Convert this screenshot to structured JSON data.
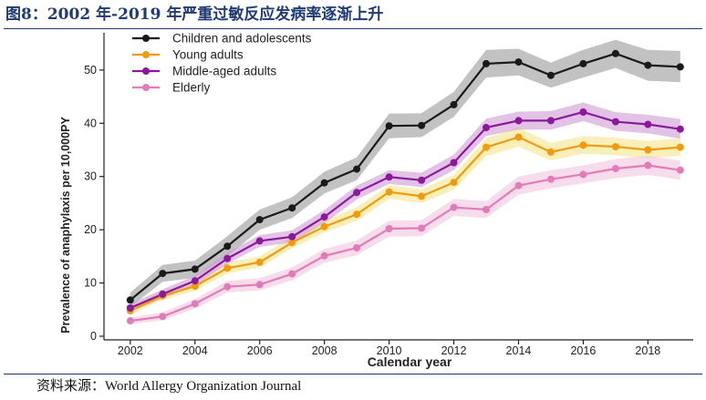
{
  "figure_title": "图8：2002 年-2019 年严重过敏反应发病率逐渐上升",
  "source_text": "资料来源：World Allergy Organization Journal",
  "chart_data": {
    "type": "line",
    "xlabel": "Calendar year",
    "ylabel": "Prevalence of anaphylaxis per 10,000PY",
    "x": [
      2002,
      2003,
      2004,
      2005,
      2006,
      2007,
      2008,
      2009,
      2010,
      2011,
      2012,
      2013,
      2014,
      2015,
      2016,
      2017,
      2018,
      2019
    ],
    "xlim": [
      2001.3,
      2019.4
    ],
    "ylim": [
      0,
      57
    ],
    "x_ticks": [
      "2002",
      "2004",
      "2006",
      "2008",
      "2010",
      "2012",
      "2014",
      "2016",
      "2018"
    ],
    "y_ticks": [
      "0",
      "10",
      "20",
      "30",
      "40",
      "50"
    ],
    "legend_position": "top-left",
    "grid": false,
    "series": [
      {
        "name": "Children and adolescents",
        "color": "#1a1a1a",
        "band_color": "#9a9a9a",
        "values": [
          6.8,
          11.8,
          12.6,
          16.9,
          21.9,
          24.1,
          28.8,
          31.4,
          39.5,
          39.6,
          43.5,
          51.2,
          51.5,
          49.0,
          51.2,
          53.1,
          50.9,
          50.6
        ],
        "ci_lower": [
          5.5,
          10.2,
          11.0,
          15.0,
          20.0,
          22.2,
          26.8,
          29.3,
          37.2,
          37.4,
          41.2,
          48.6,
          49.0,
          46.7,
          48.6,
          50.4,
          48.0,
          47.7
        ],
        "ci_upper": [
          8.2,
          13.4,
          14.2,
          18.8,
          23.8,
          26.1,
          30.9,
          33.6,
          41.8,
          41.9,
          45.9,
          53.8,
          54.0,
          51.4,
          53.8,
          55.7,
          53.8,
          53.6
        ]
      },
      {
        "name": "Young adults",
        "color": "#f29a0e",
        "band_color": "#f5e58a",
        "values": [
          4.8,
          7.6,
          9.4,
          12.8,
          13.9,
          17.6,
          20.6,
          22.9,
          27.1,
          26.3,
          28.9,
          35.5,
          37.4,
          34.6,
          35.9,
          35.6,
          35.0,
          35.5
        ],
        "ci_lower": [
          4.1,
          6.8,
          8.5,
          11.8,
          12.9,
          16.5,
          19.5,
          21.7,
          25.8,
          25.0,
          27.5,
          33.8,
          35.6,
          33.0,
          34.3,
          34.0,
          33.4,
          33.9
        ],
        "ci_upper": [
          5.6,
          8.5,
          10.4,
          13.9,
          15.0,
          18.8,
          21.8,
          24.2,
          28.4,
          27.6,
          30.3,
          37.2,
          39.2,
          36.3,
          37.6,
          37.3,
          36.7,
          37.2
        ]
      },
      {
        "name": "Middle-aged adults",
        "color": "#8a1a9b",
        "band_color": "#cf9bd6",
        "values": [
          5.3,
          7.9,
          10.4,
          14.6,
          17.9,
          18.7,
          22.4,
          27.0,
          29.9,
          29.3,
          32.6,
          39.2,
          40.5,
          40.5,
          42.1,
          40.3,
          39.8,
          38.9
        ],
        "ci_lower": [
          4.6,
          7.1,
          9.5,
          13.6,
          16.8,
          17.6,
          21.2,
          25.7,
          28.6,
          28.0,
          31.2,
          37.6,
          38.8,
          38.8,
          40.4,
          38.6,
          38.1,
          37.1
        ],
        "ci_upper": [
          6.1,
          8.8,
          11.4,
          15.7,
          19.0,
          19.9,
          23.7,
          28.3,
          31.2,
          30.7,
          34.1,
          40.9,
          42.2,
          42.3,
          43.9,
          42.1,
          41.6,
          40.8
        ]
      },
      {
        "name": "Elderly",
        "color": "#e27bb8",
        "band_color": "#f2c6de",
        "values": [
          2.9,
          3.7,
          6.1,
          9.3,
          9.7,
          11.7,
          15.1,
          16.6,
          20.2,
          20.3,
          24.2,
          23.8,
          28.3,
          29.5,
          30.4,
          31.5,
          32.1,
          31.2
        ],
        "ci_lower": [
          2.3,
          3.0,
          5.2,
          8.2,
          8.6,
          10.5,
          13.8,
          15.2,
          18.7,
          18.8,
          22.6,
          22.2,
          26.6,
          27.8,
          28.7,
          29.7,
          30.3,
          29.4
        ],
        "ci_upper": [
          3.5,
          4.5,
          7.0,
          10.4,
          10.9,
          12.9,
          16.4,
          18.0,
          21.7,
          21.8,
          25.8,
          25.4,
          30.0,
          31.2,
          32.1,
          33.3,
          33.9,
          33.0
        ]
      }
    ]
  }
}
